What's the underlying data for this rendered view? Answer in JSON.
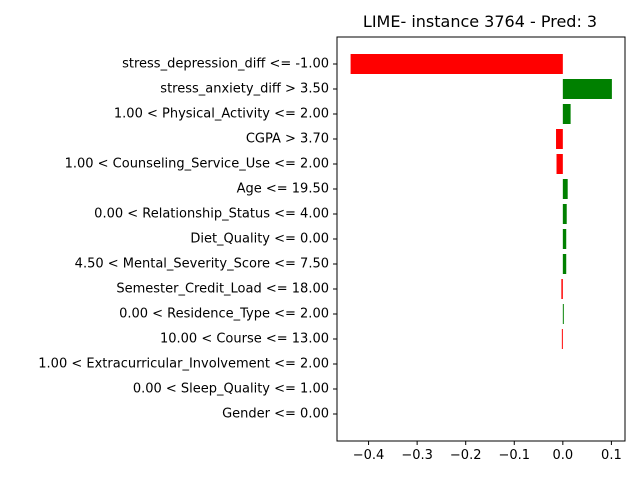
{
  "chart_data": {
    "type": "bar",
    "orientation": "horizontal",
    "title": "LIME- instance 3764 - Pred: 3",
    "xlabel": "",
    "ylabel": "",
    "xlim": [
      -0.465,
      0.128
    ],
    "xticks": [
      -0.4,
      -0.3,
      -0.2,
      -0.1,
      0.0,
      0.1
    ],
    "xtick_labels": [
      "−0.4",
      "−0.3",
      "−0.2",
      "−0.1",
      "0.0",
      "0.1"
    ],
    "grid": false,
    "colors": {
      "positive": "#008000",
      "negative": "#ff0000"
    },
    "categories": [
      "stress_depression_diff <= -1.00",
      "stress_anxiety_diff > 3.50",
      "1.00 < Physical_Activity <= 2.00",
      "CGPA > 3.70",
      "1.00 < Counseling_Service_Use <= 2.00",
      "Age <= 19.50",
      "0.00 < Relationship_Status <= 4.00",
      "Diet_Quality <= 0.00",
      "4.50 < Mental_Severity_Score <= 7.50",
      "Semester_Credit_Load <= 18.00",
      "0.00 < Residence_Type <= 2.00",
      "10.00 < Course <= 13.00",
      "1.00 < Extracurricular_Involvement <= 2.00",
      "0.00 < Sleep_Quality <= 1.00",
      "Gender <= 0.00"
    ],
    "values": [
      -0.437,
      0.101,
      0.016,
      -0.014,
      -0.013,
      0.01,
      0.008,
      0.007,
      0.007,
      -0.003,
      0.002,
      -0.002,
      0.0,
      0.0,
      0.0
    ]
  }
}
